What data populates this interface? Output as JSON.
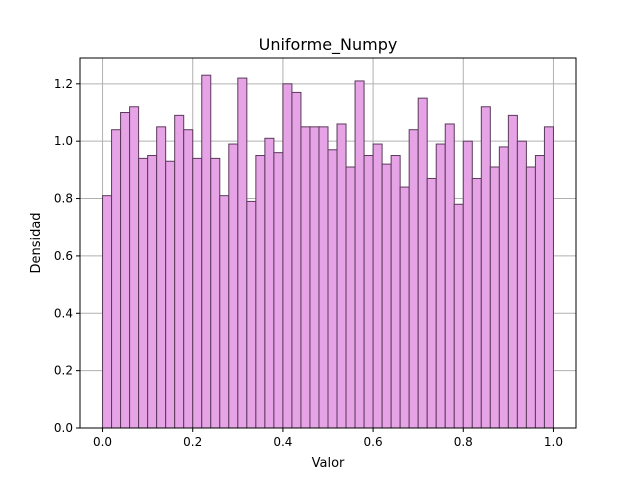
{
  "chart_data": {
    "type": "bar",
    "title": "Uniforme_Numpy",
    "xlabel": "Valor",
    "ylabel": "Densidad",
    "xlim": [
      -0.05,
      1.05
    ],
    "ylim": [
      0,
      1.29
    ],
    "xticks": [
      "0.0",
      "0.2",
      "0.4",
      "0.6",
      "0.8",
      "1.0"
    ],
    "yticks": [
      "0.0",
      "0.2",
      "0.4",
      "0.6",
      "0.8",
      "1.0",
      "1.2"
    ],
    "grid": true,
    "bin_start": 0.0,
    "bin_end": 1.0,
    "values": [
      0.81,
      1.04,
      1.1,
      1.12,
      0.94,
      0.95,
      1.05,
      0.93,
      1.09,
      1.04,
      0.94,
      1.23,
      0.94,
      0.81,
      0.99,
      1.22,
      0.79,
      0.95,
      1.01,
      0.96,
      1.2,
      1.17,
      1.05,
      1.05,
      1.05,
      0.97,
      1.06,
      0.91,
      1.21,
      0.95,
      0.99,
      0.92,
      0.95,
      0.84,
      1.04,
      1.15,
      0.87,
      0.99,
      1.06,
      0.78,
      1.0,
      0.87,
      1.12,
      0.91,
      0.98,
      1.09,
      1.0,
      0.91,
      0.95,
      1.05
    ],
    "colors": {
      "bar_fill": "#e6a3e6",
      "bar_edge": "#5a3a5a",
      "grid": "#b0b0b0"
    }
  }
}
